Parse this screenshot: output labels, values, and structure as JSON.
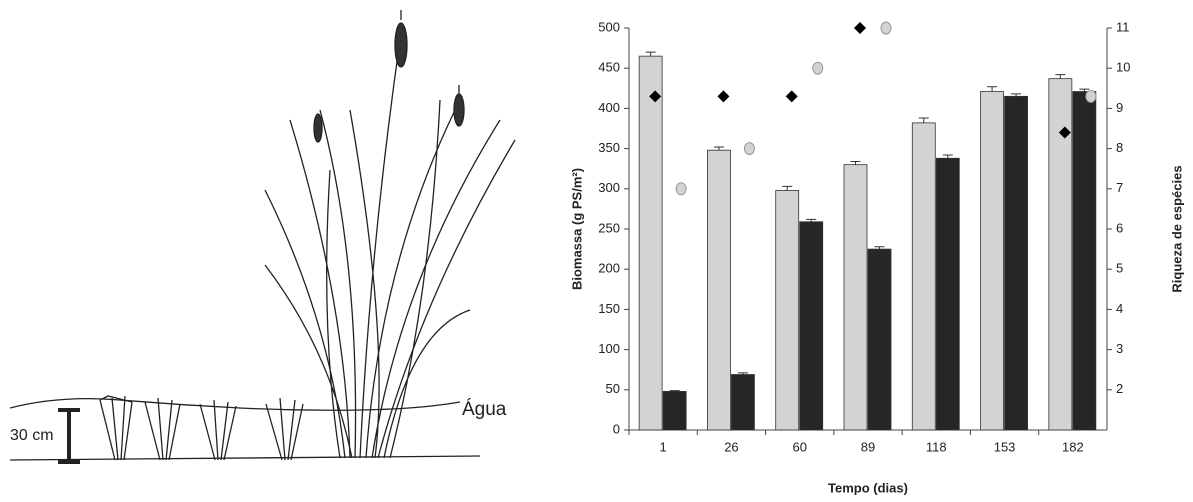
{
  "illustration": {
    "depth_label": "30 cm",
    "water_label": "Água"
  },
  "chart_data": {
    "type": "bar",
    "ylabel": "Biomassa (g PS/m²)",
    "y2label": "Riqueza de espécies",
    "xlabel": "Tempo (dias)",
    "categories": [
      "1",
      "26",
      "60",
      "89",
      "118",
      "153",
      "182"
    ],
    "ylim": [
      0,
      500
    ],
    "yticks": [
      0,
      50,
      100,
      150,
      200,
      250,
      300,
      350,
      400,
      450,
      500
    ],
    "y2lim": [
      1,
      11
    ],
    "y2ticks": [
      2,
      3,
      4,
      5,
      6,
      7,
      8,
      9,
      10,
      11
    ],
    "series": [
      {
        "type": "bar",
        "color": "#d3d3d3",
        "values": [
          465,
          348,
          298,
          330,
          382,
          421,
          437
        ],
        "errors": [
          5,
          4,
          5,
          4,
          6,
          6,
          5
        ]
      },
      {
        "type": "bar",
        "color": "#262626",
        "values": [
          48,
          69,
          259,
          225,
          338,
          415,
          421
        ],
        "errors": [
          1,
          2,
          3,
          3,
          4,
          3,
          3
        ]
      },
      {
        "type": "scatter",
        "axis": "y2",
        "marker": "diamond",
        "color": "#000000",
        "values": [
          9.3,
          9.3,
          9.3,
          11,
          null,
          null,
          8.4
        ]
      },
      {
        "type": "scatter",
        "axis": "y2",
        "marker": "circle",
        "color": "#d3d3d3",
        "values": [
          7,
          8,
          10,
          11,
          null,
          null,
          9.3
        ]
      }
    ]
  }
}
